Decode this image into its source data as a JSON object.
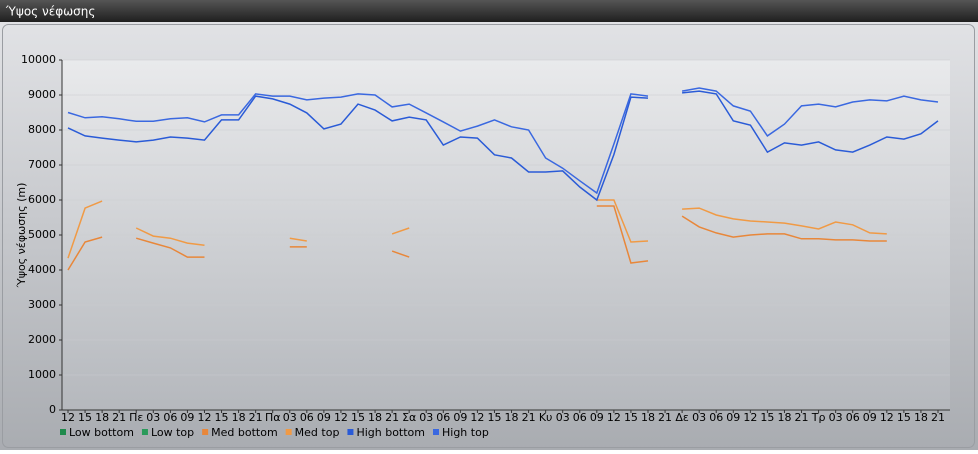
{
  "chart_data": {
    "type": "line",
    "title": "Ύψος νέφωσης",
    "ylabel": "Ύψος νέφωσης (m)",
    "categories": [
      "12",
      "15",
      "18",
      "21",
      "Πε",
      "03",
      "06",
      "09",
      "12",
      "15",
      "18",
      "21",
      "Πα",
      "03",
      "06",
      "09",
      "12",
      "15",
      "18",
      "21",
      "Σα",
      "03",
      "06",
      "09",
      "12",
      "15",
      "18",
      "21",
      "Κυ",
      "03",
      "06",
      "09",
      "12",
      "15",
      "18",
      "21",
      "Δε",
      "03",
      "06",
      "09",
      "12",
      "15",
      "18",
      "21",
      "Τρ",
      "03",
      "06",
      "09",
      "12",
      "15",
      "18",
      "21"
    ],
    "ylim": [
      0,
      10000
    ],
    "yticks": [
      0,
      1000,
      2000,
      3000,
      4000,
      5000,
      6000,
      7000,
      8000,
      9000,
      10000
    ],
    "grid": true,
    "series": [
      {
        "name": "Low bottom",
        "color": "#1f8a4c",
        "values": [
          null,
          null,
          null,
          null,
          null,
          null,
          null,
          null,
          null,
          null,
          null,
          null,
          null,
          null,
          null,
          null,
          null,
          null,
          null,
          null,
          null,
          null,
          null,
          null,
          null,
          null,
          null,
          null,
          null,
          null,
          null,
          null,
          null,
          null,
          null,
          null,
          null,
          null,
          null,
          null,
          null,
          null,
          null,
          null,
          null,
          null,
          null,
          null,
          null,
          null,
          null,
          null
        ]
      },
      {
        "name": "Low top",
        "color": "#2a9a5a",
        "values": [
          null,
          null,
          null,
          null,
          null,
          null,
          null,
          null,
          null,
          null,
          null,
          null,
          null,
          null,
          null,
          null,
          null,
          null,
          null,
          null,
          null,
          null,
          null,
          null,
          null,
          null,
          null,
          null,
          null,
          null,
          null,
          null,
          null,
          null,
          null,
          null,
          null,
          null,
          null,
          null,
          null,
          null,
          null,
          null,
          null,
          null,
          null,
          null,
          null,
          null,
          null,
          null
        ]
      },
      {
        "name": "Med bottom",
        "color": "#e8873a",
        "values": [
          4000,
          4800,
          4940,
          null,
          4910,
          4770,
          4630,
          4370,
          4370,
          null,
          null,
          null,
          null,
          4660,
          4660,
          null,
          null,
          null,
          null,
          4540,
          4370,
          null,
          null,
          null,
          null,
          null,
          null,
          null,
          null,
          null,
          null,
          5830,
          5830,
          4200,
          4260,
          null,
          5540,
          5230,
          5060,
          4940,
          5000,
          5030,
          5030,
          4890,
          4890,
          4860,
          4860,
          4830,
          4830,
          null,
          null,
          null
        ]
      },
      {
        "name": "Med top",
        "color": "#f09a45",
        "values": [
          4340,
          5770,
          5970,
          null,
          5200,
          4970,
          4910,
          4770,
          4710,
          null,
          null,
          null,
          null,
          4910,
          4830,
          null,
          null,
          null,
          null,
          5030,
          5200,
          null,
          null,
          null,
          null,
          null,
          null,
          null,
          null,
          null,
          null,
          6000,
          6000,
          4800,
          4830,
          null,
          5740,
          5770,
          5570,
          5460,
          5400,
          5370,
          5340,
          5260,
          5170,
          5370,
          5290,
          5060,
          5030,
          null,
          null,
          null
        ]
      },
      {
        "name": "High bottom",
        "color": "#2a5bd7",
        "values": [
          8060,
          7830,
          7770,
          7710,
          7660,
          7710,
          7800,
          7770,
          7710,
          8290,
          8290,
          8970,
          8890,
          8740,
          8490,
          8030,
          8170,
          8740,
          8570,
          8260,
          8370,
          8290,
          7570,
          7800,
          7770,
          7290,
          7200,
          6800,
          6800,
          6830,
          6370,
          6000,
          7300,
          8940,
          8910,
          null,
          9060,
          9110,
          9030,
          8260,
          8140,
          7370,
          7630,
          7570,
          7660,
          7430,
          7370,
          7570,
          7800,
          7740,
          7890,
          8260
        ]
      },
      {
        "name": "High top",
        "color": "#3a68e0",
        "values": [
          8500,
          8350,
          8380,
          8320,
          8250,
          8250,
          8320,
          8350,
          8230,
          8430,
          8430,
          9030,
          8970,
          8970,
          8860,
          8910,
          8940,
          9030,
          9000,
          8660,
          8740,
          8490,
          8230,
          7970,
          8110,
          8290,
          8090,
          8000,
          7200,
          6910,
          6550,
          6200,
          7600,
          9030,
          8970,
          null,
          9110,
          9200,
          9110,
          8690,
          8540,
          7830,
          8170,
          8690,
          8740,
          8660,
          8800,
          8860,
          8830,
          8970,
          8860,
          8800
        ]
      }
    ]
  }
}
